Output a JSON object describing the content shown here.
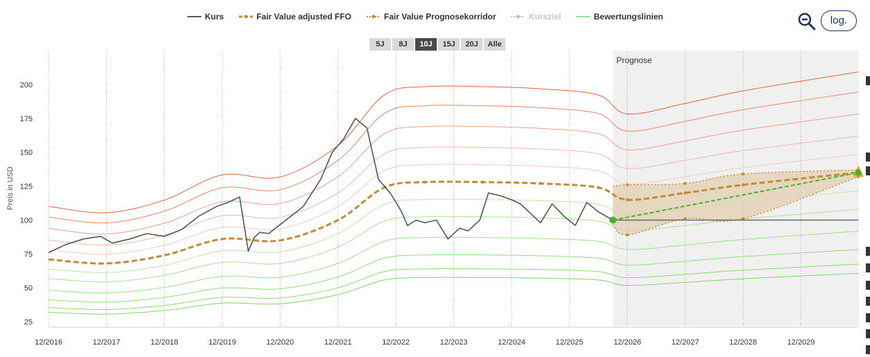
{
  "legend": [
    {
      "label": "Kurs",
      "color": "#555555",
      "style": "solid",
      "dim": false
    },
    {
      "label": "Fair Value adjusted FFO",
      "color": "#c48a34",
      "style": "dashed",
      "dim": false
    },
    {
      "label": "Fair Value Prognosekorridor",
      "color": "#c48a34",
      "style": "dotted",
      "dim": false
    },
    {
      "label": "Kursziel",
      "color": "#bbbbbb",
      "style": "dotted",
      "dim": true
    },
    {
      "label": "Bewertungslinien",
      "color": "#9be08a",
      "style": "solid",
      "dim": false
    }
  ],
  "range_buttons": [
    {
      "label": "5J",
      "active": false
    },
    {
      "label": "8J",
      "active": false
    },
    {
      "label": "10J",
      "active": true
    },
    {
      "label": "15J",
      "active": false
    },
    {
      "label": "20J",
      "active": false
    },
    {
      "label": "Alle",
      "active": false
    }
  ],
  "controls": {
    "zoom_icon": "zoom-out-magnifier-icon",
    "log_label": "log."
  },
  "chart_data": {
    "type": "line",
    "ylabel": "Preis in USD",
    "ylim": [
      22,
      225
    ],
    "yticks": [
      25,
      50,
      75,
      100,
      125,
      150,
      175,
      200
    ],
    "xlim": [
      2016.0,
      2030.0
    ],
    "xticks": [
      "12/2016",
      "12/2017",
      "12/2018",
      "12/2019",
      "12/2020",
      "12/2021",
      "12/2022",
      "12/2023",
      "12/2024",
      "12/2025",
      "12/2026",
      "12/2027",
      "12/2028",
      "12/2029"
    ],
    "forecast_label": "Prognose",
    "forecast_start": 2025.75,
    "colors": {
      "kurs": "#555555",
      "fair_value": "#c48a34",
      "corridor_fill": "#e3cfb0",
      "trend": "#4caf2e",
      "upper": "#e4603f",
      "lower": "#8fdc7a",
      "forecast_bg": "#f0f0f0"
    },
    "series": [
      {
        "name": "Kurs",
        "x": [
          2016.0,
          2016.3,
          2016.6,
          2016.9,
          2017.1,
          2017.4,
          2017.7,
          2018.0,
          2018.3,
          2018.6,
          2018.9,
          2019.1,
          2019.3,
          2019.45,
          2019.55,
          2019.65,
          2019.8,
          2020.1,
          2020.4,
          2020.7,
          2020.9,
          2021.1,
          2021.3,
          2021.5,
          2021.7,
          2021.9,
          2021.99,
          2022.1,
          2022.2,
          2022.35,
          2022.5,
          2022.7,
          2022.9,
          2023.1,
          2023.25,
          2023.45,
          2023.6,
          2023.8,
          2024.0,
          2024.15,
          2024.3,
          2024.5,
          2024.7,
          2024.9,
          2025.1,
          2025.3,
          2025.5,
          2025.75
        ],
        "y": [
          76,
          82,
          86,
          88,
          83,
          86,
          90,
          88,
          93,
          103,
          110,
          113,
          117,
          77,
          87,
          91,
          90,
          100,
          110,
          130,
          150,
          160,
          175,
          168,
          130,
          120,
          114,
          106,
          96,
          100,
          98,
          100,
          86,
          94,
          92,
          100,
          120,
          118,
          115,
          112,
          106,
          98,
          112,
          103,
          96,
          113,
          106,
          100
        ]
      },
      {
        "name": "Kurs Prognose",
        "x": [
          2025.75,
          2029.99
        ],
        "y": [
          100,
          100
        ]
      },
      {
        "name": "Fair Value adjusted FFO",
        "x": [
          2016.0,
          2017.0,
          2018.0,
          2019.0,
          2020.0,
          2021.0,
          2021.8,
          2022.5,
          2023.5,
          2024.5,
          2025.5,
          2026.0,
          2027.0,
          2028.0,
          2029.99
        ],
        "y": [
          71,
          68,
          74,
          86,
          85,
          100,
          124,
          128,
          128,
          127,
          124,
          115,
          120,
          126,
          135
        ]
      },
      {
        "name": "Prognosekorridor oben",
        "x": [
          2025.75,
          2026.0,
          2027.0,
          2028.0,
          2029.99
        ],
        "y": [
          125,
          126,
          127,
          134,
          137
        ]
      },
      {
        "name": "Prognosekorridor unten",
        "x": [
          2025.75,
          2026.0,
          2027.0,
          2028.0,
          2029.99
        ],
        "y": [
          97,
          89,
          101,
          101,
          132
        ]
      },
      {
        "name": "Trend",
        "x": [
          2025.75,
          2029.99
        ],
        "y": [
          100,
          135
        ]
      }
    ],
    "bands": {
      "upper_factors": [
        1.55,
        1.44,
        1.32,
        1.2,
        1.1
      ],
      "lower_factors": [
        0.9,
        0.8,
        0.68,
        0.58,
        0.5,
        0.45
      ]
    },
    "markers": {
      "start": {
        "x": 2025.75,
        "y": 100
      },
      "end": {
        "x": 2029.99,
        "y": 135
      }
    }
  }
}
